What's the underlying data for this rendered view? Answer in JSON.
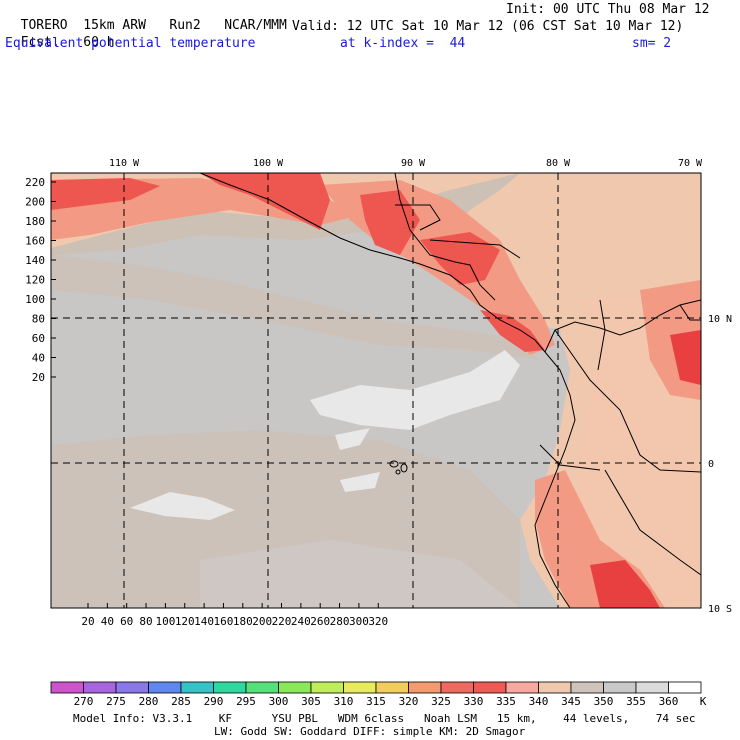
{
  "header": {
    "model": "TORERO",
    "resolution": "15km ARW",
    "run": "Run2",
    "org": "NCAR/MMM",
    "init": "Init: 00 UTC Thu 08 Mar 12",
    "fcst_label": "Fcst.",
    "fcst_value": "60 h",
    "valid": "Valid: 12 UTC Sat 10 Mar 12 (06 CST Sat 10 Mar 12)",
    "field": "Equivalent potential temperature",
    "level": "at k-index =  44",
    "smoothing": "sm= 2"
  },
  "map": {
    "top_lon_labels": [
      "110 W",
      "100 W",
      "90 W",
      "80 W",
      "70 W"
    ],
    "right_lat_labels": [
      "10 N",
      "0",
      "10 S"
    ],
    "y_ticks": [
      "220",
      "200",
      "180",
      "160",
      "140",
      "120",
      "100",
      "80",
      "60",
      "40",
      "20"
    ],
    "x_ticks": [
      "20",
      "40",
      "60",
      "80",
      "100",
      "120",
      "140",
      "160",
      "180",
      "200",
      "220",
      "240",
      "260",
      "280",
      "300",
      "320"
    ],
    "background_color": "#c9c6c6",
    "colors": {
      "ocean_grey": "#c9c6c6",
      "light_grey": "#e8e8e8",
      "warm_grey": "#cdc0b5",
      "peach": "#f0c8ad",
      "salmon": "#f29a84",
      "red": "#ee5650",
      "deep_red": "#e84040",
      "coast": "#000000",
      "grid": "#000000"
    }
  },
  "colorbar": {
    "labels": [
      "270",
      "275",
      "280",
      "285",
      "290",
      "295",
      "300",
      "305",
      "310",
      "315",
      "320",
      "325",
      "330",
      "335",
      "340",
      "345",
      "350",
      "355",
      "360"
    ],
    "unit": "K",
    "colors": [
      "#cc55cc",
      "#a866dd",
      "#8a78e6",
      "#5e88ee",
      "#36c3c8",
      "#2ed9a0",
      "#56e07a",
      "#8ae85a",
      "#bfee5a",
      "#e8ec5a",
      "#f2cc5c",
      "#f29a70",
      "#ee6a5e",
      "#ef5a55",
      "#f7a9a0",
      "#f0c8ad",
      "#cfc4bc",
      "#c9c9c9",
      "#dcdcdc",
      "#ffffff"
    ]
  },
  "footer": {
    "line1": "Model Info: V3.3.1    KF      YSU PBL   WDM 6class   Noah LSM   15 km,    44 levels,    74 sec",
    "line2": "LW: Godd SW: Goddard DIFF: simple KM: 2D Smagor"
  }
}
